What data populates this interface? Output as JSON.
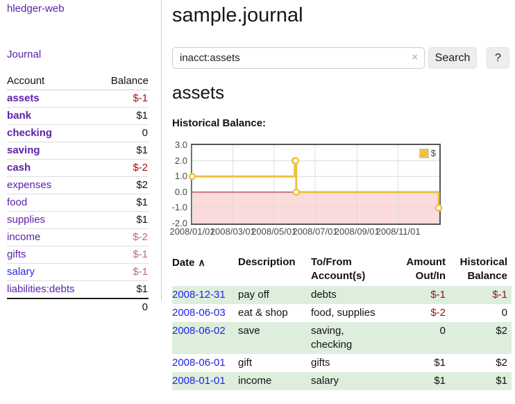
{
  "app": {
    "title": "hledger-web",
    "journal_link": "Journal"
  },
  "sidebar": {
    "accounts": {
      "header_account": "Account",
      "header_balance": "Balance",
      "rows": [
        {
          "name": "assets",
          "balance": "$-1",
          "depth": 0
        },
        {
          "name": "bank",
          "balance": "$1",
          "depth": 1
        },
        {
          "name": "checking",
          "balance": "0",
          "depth": 2
        },
        {
          "name": "saving",
          "balance": "$1",
          "depth": 2
        },
        {
          "name": "cash",
          "balance": "$-2",
          "depth": 1
        },
        {
          "name": "expenses",
          "balance": "$2",
          "depth": 0
        },
        {
          "name": "food",
          "balance": "$1",
          "depth": 1
        },
        {
          "name": "supplies",
          "balance": "$1",
          "depth": 1
        },
        {
          "name": "income",
          "balance": "$-2",
          "depth": 0
        },
        {
          "name": "gifts",
          "balance": "$-1",
          "depth": 1
        },
        {
          "name": "salary",
          "balance": "$-1",
          "depth": 1
        },
        {
          "name": "liabilities:debts",
          "balance": "$1",
          "depth": 0
        }
      ],
      "total": "0"
    }
  },
  "main": {
    "title": "sample.journal",
    "search": {
      "value": "inacct:assets",
      "clear_icon": "×",
      "search_button": "Search",
      "help_button": "?"
    },
    "account_heading": "assets",
    "section_label": "Historical Balance:"
  },
  "chart_data": {
    "type": "line",
    "step": true,
    "title": "Historical Balance",
    "series": [
      {
        "name": "$",
        "color": "#edc240",
        "points": [
          [
            "2008-01-01",
            1
          ],
          [
            "2008-06-01",
            2
          ],
          [
            "2008-06-02",
            2
          ],
          [
            "2008-06-03",
            0
          ],
          [
            "2008-12-31",
            -1
          ]
        ]
      }
    ],
    "x_range": [
      "2008-01-01",
      "2009-01-01"
    ],
    "y_range": [
      -2,
      3
    ],
    "y_ticks": [
      {
        "label": "3.0",
        "value": 3
      },
      {
        "label": "2.0",
        "value": 2
      },
      {
        "label": "1.0",
        "value": 1
      },
      {
        "label": "0.0",
        "value": 0
      },
      {
        "label": "-1.0",
        "value": -1
      },
      {
        "label": "-2.0",
        "value": -2
      }
    ],
    "x_ticks": [
      {
        "label": "2008/01/01",
        "date": "2008-01-01"
      },
      {
        "label": "2008/03/01",
        "date": "2008-03-01"
      },
      {
        "label": "2008/05/01",
        "date": "2008-05-01"
      },
      {
        "label": "2008/07/01",
        "date": "2008-07-01"
      },
      {
        "label": "2008/09/01",
        "date": "2008-09-01"
      },
      {
        "label": "2008/11/01",
        "date": "2008-11-01"
      }
    ],
    "grid": true,
    "legend_position": "top-right",
    "gridline_color": "#dcdcdc",
    "negative_region_color": "#fbdbdb",
    "zero_line_color": "#991111",
    "marker": {
      "fill": "#ffffff",
      "stroke": "#edc240"
    }
  },
  "register": {
    "sort_icon": "∧",
    "headers": {
      "date": "Date",
      "description": "Description",
      "account": "To/From Account(s)",
      "amount": "Amount Out/In",
      "balance": "Historical Balance"
    },
    "rows": [
      {
        "date": "2008-12-31",
        "description": "pay off",
        "accounts": "debts",
        "amount": "$-1",
        "balance": "$-1"
      },
      {
        "date": "2008-06-03",
        "description": "eat & shop",
        "accounts": "food, supplies",
        "amount": "$-2",
        "balance": "0"
      },
      {
        "date": "2008-06-02",
        "description": "save",
        "accounts": "saving, checking",
        "amount": "0",
        "balance": "$2"
      },
      {
        "date": "2008-06-01",
        "description": "gift",
        "accounts": "gifts",
        "amount": "$1",
        "balance": "$2"
      },
      {
        "date": "2008-01-01",
        "description": "income",
        "accounts": "salary",
        "amount": "$1",
        "balance": "$1"
      }
    ]
  },
  "colors": {
    "link_purple": "#5a22a8",
    "link_blue": "#2222e6",
    "negative_strong": "#9e0e0e",
    "negative_soft": "#b96a6a",
    "row_green": "#ddeedd",
    "series_gold": "#edc240",
    "chart_border": "#545454"
  }
}
